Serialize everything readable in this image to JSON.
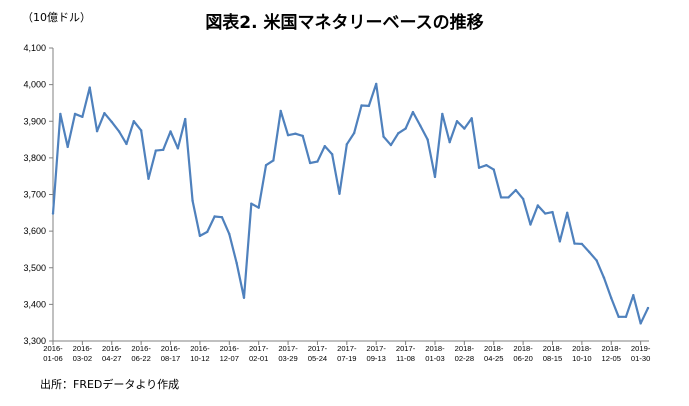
{
  "chart_data": {
    "type": "line",
    "title": "図表2. 米国マネタリーベースの推移",
    "unit_label": "（10億ドル）",
    "source": "出所：FREDデータより作成",
    "ylim": [
      3300,
      4100
    ],
    "y_ticks": [
      "3,300",
      "3,400",
      "3,500",
      "3,600",
      "3,700",
      "3,800",
      "3,900",
      "4,000",
      "4,100"
    ],
    "y_tick_values": [
      3300,
      3400,
      3500,
      3600,
      3700,
      3800,
      3900,
      4000,
      4100
    ],
    "x_tick_labels": [
      [
        "2016-",
        "01-06"
      ],
      [
        "2016-",
        "03-02"
      ],
      [
        "2016-",
        "04-27"
      ],
      [
        "2016-",
        "06-22"
      ],
      [
        "2016-",
        "08-17"
      ],
      [
        "2016-",
        "10-12"
      ],
      [
        "2016-",
        "12-07"
      ],
      [
        "2017-",
        "02-01"
      ],
      [
        "2017-",
        "03-29"
      ],
      [
        "2017-",
        "05-24"
      ],
      [
        "2017-",
        "07-19"
      ],
      [
        "2017-",
        "09-13"
      ],
      [
        "2017-",
        "11-08"
      ],
      [
        "2018-",
        "01-03"
      ],
      [
        "2018-",
        "02-28"
      ],
      [
        "2018-",
        "04-25"
      ],
      [
        "2018-",
        "06-20"
      ],
      [
        "2018-",
        "08-15"
      ],
      [
        "2018-",
        "10-10"
      ],
      [
        "2018-",
        "12-05"
      ],
      [
        "2019-",
        "01-30"
      ]
    ],
    "grid": false,
    "legend": "none",
    "line_color": "#4f81bd",
    "values": [
      3648,
      3920,
      3830,
      3920,
      3912,
      3992,
      3873,
      3922,
      3898,
      3872,
      3838,
      3900,
      3875,
      3743,
      3820,
      3822,
      3872,
      3826,
      3906,
      3683,
      3587,
      3598,
      3640,
      3638,
      3592,
      3513,
      3418,
      3675,
      3664,
      3780,
      3793,
      3928,
      3862,
      3866,
      3860,
      3786,
      3790,
      3832,
      3810,
      3702,
      3837,
      3868,
      3943,
      3942,
      4002,
      3858,
      3835,
      3867,
      3880,
      3925,
      3888,
      3850,
      3748,
      3920,
      3843,
      3900,
      3880,
      3908,
      3773,
      3780,
      3768,
      3692,
      3692,
      3712,
      3688,
      3618,
      3670,
      3648,
      3652,
      3572,
      3650,
      3566,
      3565,
      3543,
      3520,
      3473,
      3417,
      3366,
      3366,
      3425,
      3348,
      3390
    ]
  }
}
